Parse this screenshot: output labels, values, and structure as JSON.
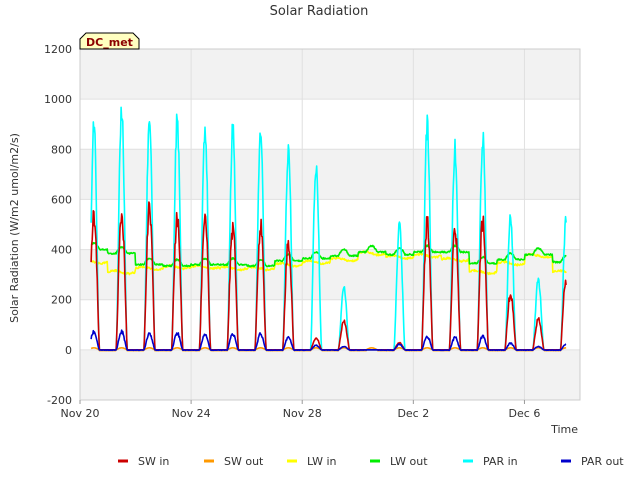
{
  "chart_data": {
    "type": "line",
    "title": "Solar Radiation",
    "xlabel": "Time",
    "ylabel": "Solar Radiation (W/m2 umol/m2/s)",
    "badge": "DC_met",
    "colors": {
      "badge_bg": "#ffffc0",
      "badge_text": "#8b0000",
      "band": "#f2f2f2"
    },
    "x_start_day": 0,
    "x_end_day": 18,
    "xlim": [
      0,
      18
    ],
    "ylim": [
      -200,
      1200
    ],
    "yticks": [
      -200,
      0,
      200,
      400,
      600,
      800,
      1000,
      1200
    ],
    "xticks": [
      {
        "day": 0,
        "label": "Nov 20"
      },
      {
        "day": 4,
        "label": "Nov 24"
      },
      {
        "day": 8,
        "label": "Nov 28"
      },
      {
        "day": 12,
        "label": "Dec 2"
      },
      {
        "day": 16,
        "label": "Dec 6"
      }
    ],
    "day_peaks": [
      {
        "day": 0,
        "sw_in": 570,
        "par_in": 935,
        "lw_in": 350,
        "lw_out": 400,
        "par_out": 80
      },
      {
        "day": 1,
        "sw_in": 600,
        "par_in": 1010,
        "lw_in": 310,
        "lw_out": 385,
        "par_out": 80
      },
      {
        "day": 2,
        "sw_in": 600,
        "par_in": 975,
        "lw_in": 325,
        "lw_out": 340,
        "par_out": 75
      },
      {
        "day": 3,
        "sw_in": 575,
        "par_in": 965,
        "lw_in": 330,
        "lw_out": 335,
        "par_out": 75
      },
      {
        "day": 4,
        "sw_in": 580,
        "par_in": 940,
        "lw_in": 330,
        "lw_out": 340,
        "par_out": 72
      },
      {
        "day": 5,
        "sw_in": 525,
        "par_in": 930,
        "lw_in": 325,
        "lw_out": 340,
        "par_out": 70
      },
      {
        "day": 6,
        "sw_in": 530,
        "par_in": 930,
        "lw_in": 325,
        "lw_out": 335,
        "par_out": 70
      },
      {
        "day": 7,
        "sw_in": 460,
        "par_in": 830,
        "lw_in": 340,
        "lw_out": 355,
        "par_out": 55
      },
      {
        "day": 8,
        "sw_in": 50,
        "par_in": 770,
        "lw_in": 350,
        "lw_out": 365,
        "par_out": 20
      },
      {
        "day": 9,
        "sw_in": 120,
        "par_in": 260,
        "lw_in": 360,
        "lw_out": 375,
        "par_out": 15
      },
      {
        "day": 10,
        "sw_in": 0,
        "par_in": 0,
        "lw_in": 385,
        "lw_out": 390,
        "par_out": 0
      },
      {
        "day": 11,
        "sw_in": 30,
        "par_in": 525,
        "lw_in": 370,
        "lw_out": 380,
        "par_out": 25
      },
      {
        "day": 12,
        "sw_in": 545,
        "par_in": 940,
        "lw_in": 375,
        "lw_out": 390,
        "par_out": 60
      },
      {
        "day": 13,
        "sw_in": 515,
        "par_in": 840,
        "lw_in": 360,
        "lw_out": 390,
        "par_out": 55
      },
      {
        "day": 14,
        "sw_in": 555,
        "par_in": 890,
        "lw_in": 310,
        "lw_out": 345,
        "par_out": 60
      },
      {
        "day": 15,
        "sw_in": 240,
        "par_in": 550,
        "lw_in": 345,
        "lw_out": 360,
        "par_out": 30
      },
      {
        "day": 16,
        "sw_in": 130,
        "par_in": 295,
        "lw_in": 375,
        "lw_out": 380,
        "par_out": 15
      },
      {
        "day": 17,
        "sw_in": 300,
        "par_in": 560,
        "lw_in": 310,
        "lw_out": 350,
        "par_out": 25
      }
    ],
    "series": [
      {
        "name": "SW in",
        "key": "sw_in",
        "color": "#cc0000"
      },
      {
        "name": "SW out",
        "key": "sw_out",
        "color": "#ff9900"
      },
      {
        "name": "LW in",
        "key": "lw_in",
        "color": "#ffff00"
      },
      {
        "name": "LW out",
        "key": "lw_out",
        "color": "#00ee00"
      },
      {
        "name": "PAR in",
        "key": "par_in",
        "color": "#00ffff"
      },
      {
        "name": "PAR out",
        "key": "par_out",
        "color": "#0000cc"
      }
    ]
  }
}
